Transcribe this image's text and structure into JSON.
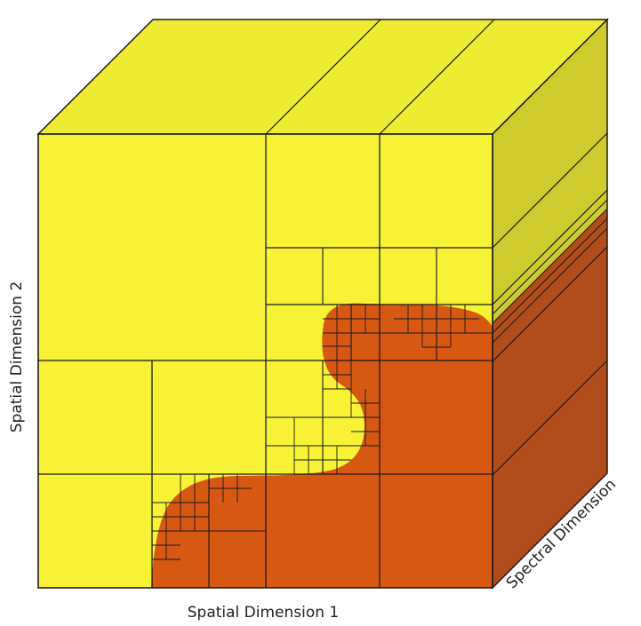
{
  "labels": {
    "x_axis": "Spatial Dimension 1",
    "y_axis": "Spatial Dimension 2",
    "z_axis": "Spectral Dimension"
  },
  "colors": {
    "region_a_front": "#f7f236",
    "region_a_top": "#eeec32",
    "region_a_side": "#cfcb2e",
    "region_b_front": "#d65812",
    "region_b_side": "#b14d1c",
    "lines": "#1a1a1a"
  }
}
